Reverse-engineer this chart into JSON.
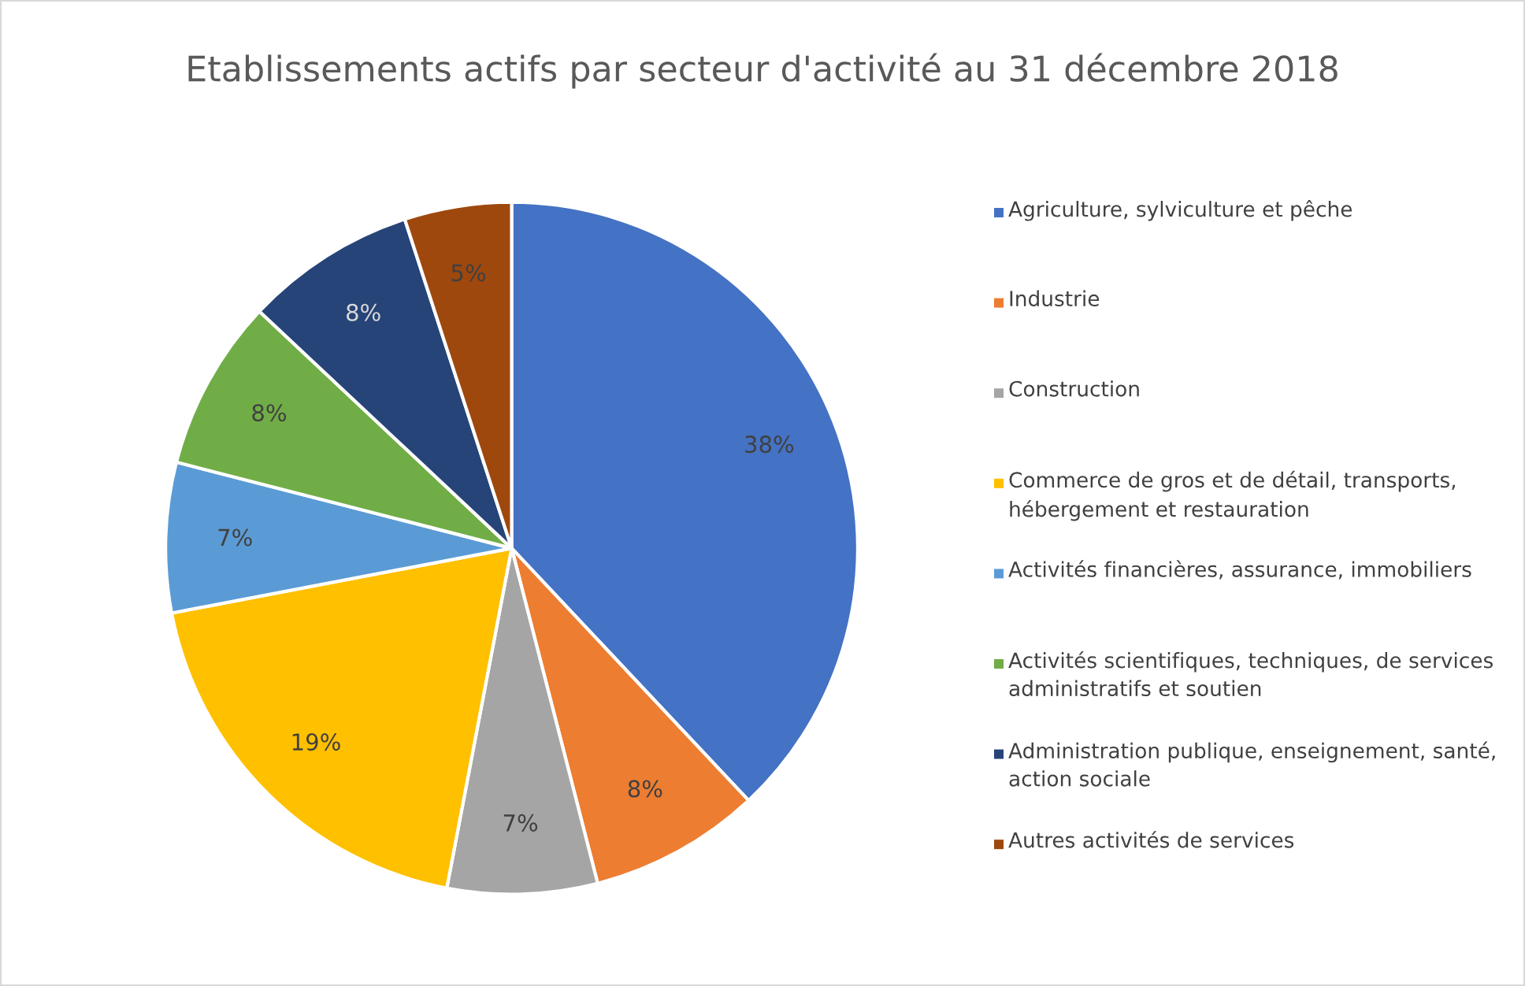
{
  "chart_data": {
    "type": "pie",
    "title": "Etablissements actifs par secteur d'activité au 31 décembre 2018",
    "categories": [
      "Agriculture, sylviculture et pêche",
      "Industrie",
      "Construction",
      "Commerce de gros et de détail, transports, hébergement et restauration",
      "Activités financières, assurance, immobiliers",
      "Activités scientifiques, techniques, de services administratifs et soutien",
      "Administration publique, enseignement, santé, action sociale",
      "Autres activités de services"
    ],
    "values": [
      38,
      8,
      7,
      19,
      7,
      8,
      8,
      5
    ],
    "value_labels": [
      "38%",
      "8%",
      "7%",
      "19%",
      "7%",
      "8%",
      "8%",
      "5%"
    ],
    "colors": [
      "#4472c4",
      "#ed7d31",
      "#a5a5a5",
      "#ffc000",
      "#5b9bd5",
      "#70ad47",
      "#264478",
      "#9e480e"
    ],
    "legend": "right"
  }
}
